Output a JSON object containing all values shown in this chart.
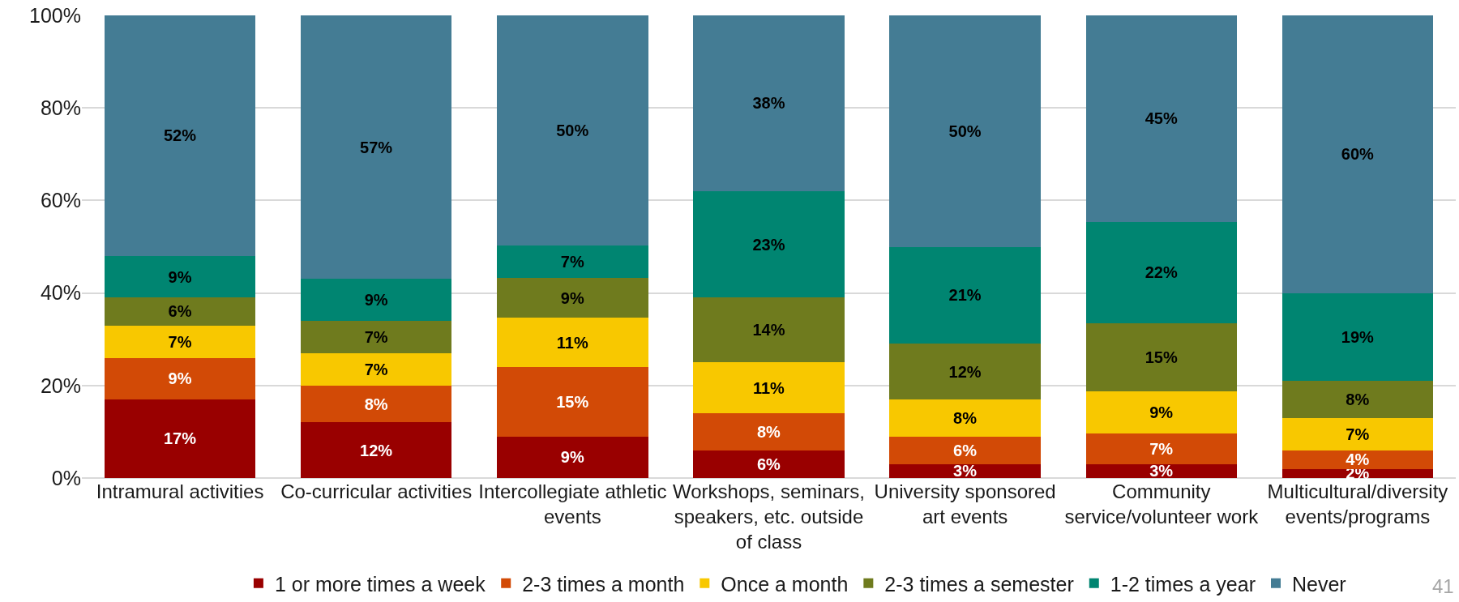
{
  "chart_data": {
    "type": "bar",
    "stacked": true,
    "categories": [
      "Intramural activities",
      "Co-curricular activities",
      "Intercollegiate athletic events",
      "Workshops, seminars, speakers, etc. outside of class",
      "University sponsored art events",
      "Community service/volunteer work",
      "Multicultural/diversity events/programs"
    ],
    "series": [
      {
        "name": "1 or more times a week",
        "color": "#990000",
        "values": [
          17,
          12,
          9,
          6,
          3,
          3,
          2
        ],
        "value_labels": [
          "17%",
          "12%",
          "9%",
          "6%",
          "3%",
          "3%",
          "2%"
        ]
      },
      {
        "name": "2-3 times a month",
        "color": "#d24a06",
        "values": [
          9,
          8,
          15,
          8,
          6,
          6.6,
          4
        ],
        "value_labels": [
          "9%",
          "8%",
          "15%",
          "8%",
          "6%",
          "7%",
          "4%"
        ]
      },
      {
        "name": "Once a month",
        "color": "#f8c800",
        "values": [
          7,
          7,
          10.6,
          11,
          8,
          9.2,
          7
        ],
        "value_labels": [
          "7%",
          "7%",
          "11%",
          "11%",
          "8%",
          "9%",
          "7%"
        ]
      },
      {
        "name": "2-3 times a semester",
        "color": "#6f7b1e",
        "values": [
          6,
          7,
          8.6,
          14,
          12,
          14.6,
          8
        ],
        "value_labels": [
          "6%",
          "7%",
          "9%",
          "14%",
          "12%",
          "15%",
          "8%"
        ]
      },
      {
        "name": "1-2 times a year",
        "color": "#008571",
        "values": [
          9,
          9,
          7,
          23,
          21,
          22,
          19
        ],
        "value_labels": [
          "9%",
          "9%",
          "7%",
          "23%",
          "21%",
          "22%",
          "19%"
        ]
      },
      {
        "name": "Never",
        "color": "#447c94",
        "values": [
          52,
          57,
          49.8,
          38,
          50,
          44.6,
          60
        ],
        "value_labels": [
          "52%",
          "57%",
          "50%",
          "38%",
          "50%",
          "45%",
          "60%"
        ]
      }
    ],
    "ylim": [
      0,
      100
    ],
    "yticks": [
      {
        "value": 0,
        "label": "0%"
      },
      {
        "value": 20,
        "label": "20%"
      },
      {
        "value": 40,
        "label": "40%"
      },
      {
        "value": 60,
        "label": "60%"
      },
      {
        "value": 80,
        "label": "80%"
      },
      {
        "value": 100,
        "label": "100%"
      }
    ],
    "grid": "y",
    "legend": "bottom",
    "annotations": [
      "41"
    ]
  }
}
